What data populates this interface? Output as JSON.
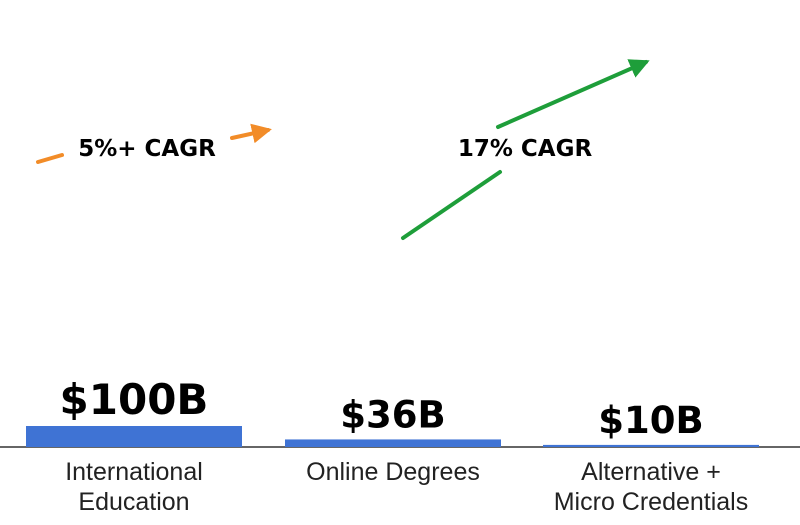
{
  "chart_data": {
    "type": "bar",
    "categories": [
      [
        "International",
        "Education"
      ],
      [
        "Online Degrees"
      ],
      [
        "Alternative +",
        "Micro Credentials"
      ]
    ],
    "values": [
      100,
      36,
      10
    ],
    "value_labels": [
      "$100B",
      "$36B",
      "$10B"
    ],
    "unit": "$B",
    "ylim": [
      0,
      100
    ],
    "bar_color": "#3f73d4",
    "grid": false,
    "legend": "none",
    "annotations": [
      {
        "text": "5%+ CAGR",
        "color": "#f28c28"
      },
      {
        "text": "17% CAGR",
        "color": "#1e9e3a"
      }
    ]
  }
}
